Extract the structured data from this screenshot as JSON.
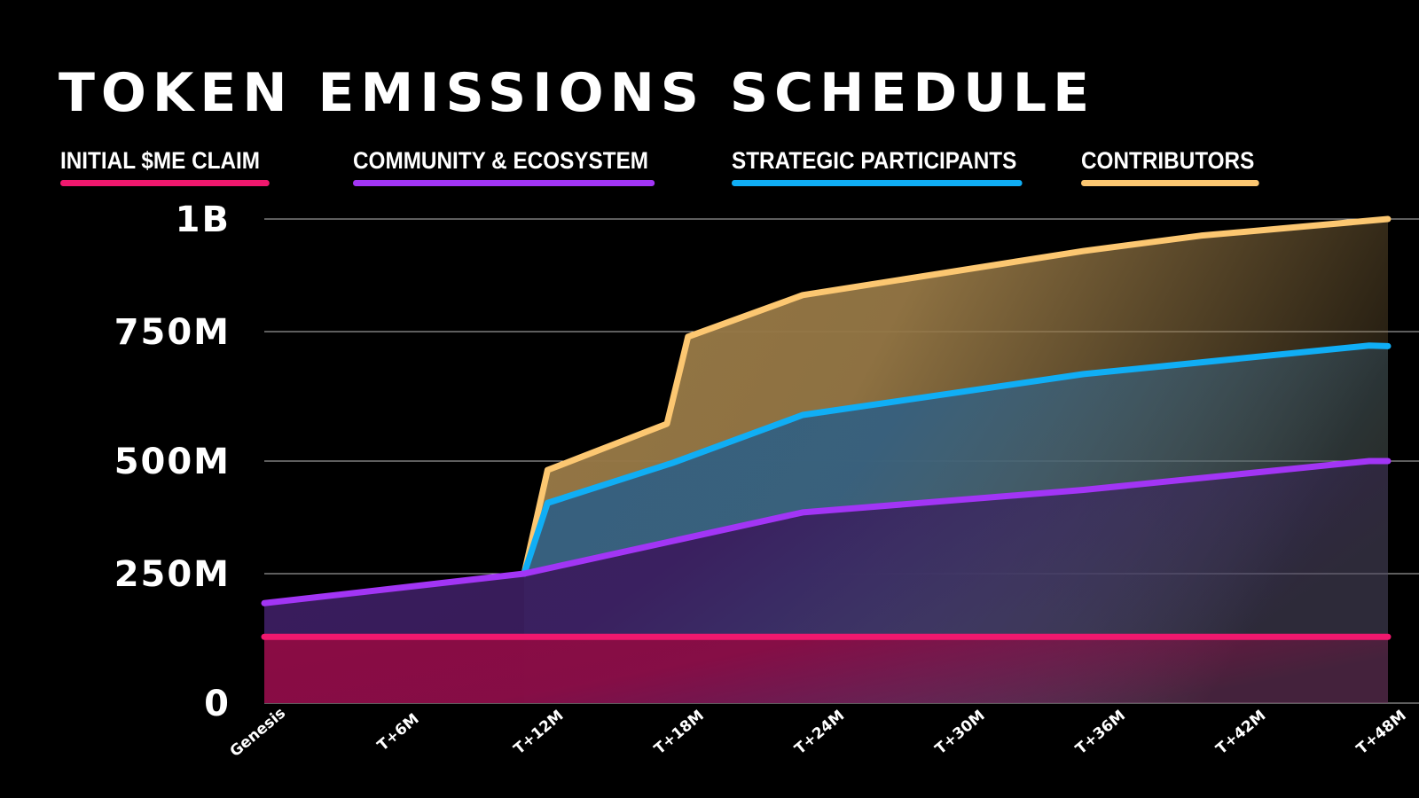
{
  "chart_data": {
    "type": "area",
    "title": "TOKEN EMISSIONS SCHEDULE",
    "x_ticks": [
      "Genesis",
      "T+6M",
      "T+12M",
      "T+18M",
      "T+24M",
      "T+30M",
      "T+36M",
      "T+42M",
      "T+48M"
    ],
    "x_tick_months": [
      0,
      6,
      12,
      18,
      24,
      30,
      36,
      42,
      48
    ],
    "y_ticks": [
      {
        "value": 0,
        "label": "0"
      },
      {
        "value": 250,
        "label": "250M"
      },
      {
        "value": 500,
        "label": "500M"
      },
      {
        "value": 750,
        "label": "750M"
      },
      {
        "value": 1000,
        "label": "1B"
      }
    ],
    "y_unit": "millions of tokens (cumulative)",
    "stacked": true,
    "grid": true,
    "legend_placement": "top",
    "series": [
      {
        "name": "INITIAL $ME CLAIM",
        "color": "#f0186e",
        "fill": "#8a0c44",
        "points": [
          [
            0,
            128
          ],
          [
            48,
            128
          ]
        ]
      },
      {
        "name": "COMMUNITY & ECOSYSTEM",
        "color": "#a235f5",
        "fill": "#3a1d5e",
        "points": [
          [
            0,
            193
          ],
          [
            11.1,
            250
          ],
          [
            23,
            386
          ],
          [
            35,
            436
          ],
          [
            47.2,
            500
          ],
          [
            48,
            500
          ]
        ]
      },
      {
        "name": "STRATEGIC PARTICIPANTS",
        "color": "#10aef5",
        "fill": "#35607f",
        "points": [
          [
            11.1,
            250
          ],
          [
            12.1,
            407
          ],
          [
            17.5,
            497
          ],
          [
            23,
            589
          ],
          [
            35,
            668
          ],
          [
            47.2,
            723
          ],
          [
            48,
            722
          ]
        ]
      },
      {
        "name": "CONTRIBUTORS",
        "color": "#fcc771",
        "fill": "#957745",
        "points": [
          [
            11.1,
            250
          ],
          [
            12.1,
            480
          ],
          [
            17.2,
            572
          ],
          [
            18.1,
            740
          ],
          [
            23,
            831
          ],
          [
            35,
            929
          ],
          [
            40,
            963
          ],
          [
            48,
            1000
          ]
        ]
      }
    ]
  }
}
